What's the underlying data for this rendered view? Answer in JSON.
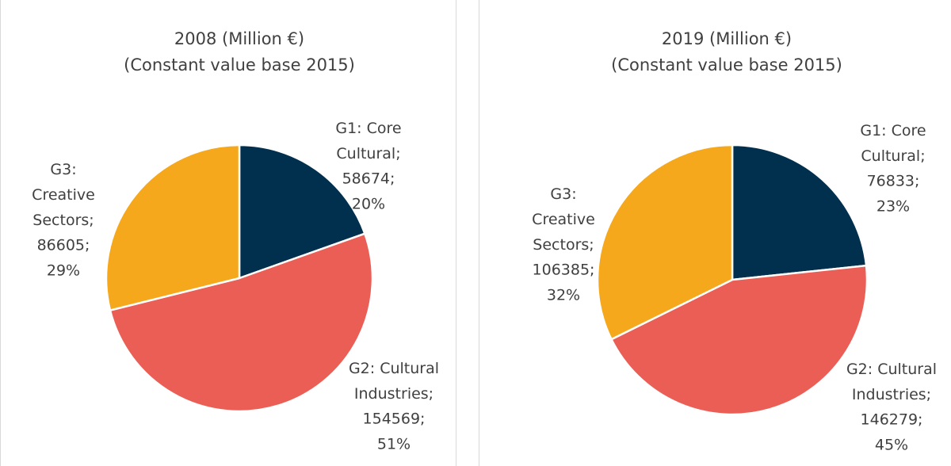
{
  "chart_data": [
    {
      "type": "pie",
      "title": "2008 (Million €)",
      "subtitle": "(Constant value base 2015)",
      "categories": [
        "G1: Core Cultural",
        "G2: Cultural Industries",
        "G3: Creative Sectors"
      ],
      "values": [
        58674,
        154569,
        86605
      ],
      "percent_labels": [
        "20%",
        "51%",
        "29%"
      ],
      "label_separator": ";",
      "colors": [
        "#00304e",
        "#eb5e55",
        "#f5a81b"
      ]
    },
    {
      "type": "pie",
      "title": "2019 (Million €)",
      "subtitle": "(Constant value base 2015)",
      "categories": [
        "G1: Core Cultural",
        "G2: Cultural Industries",
        "G3: Creative Sectors"
      ],
      "values": [
        76833,
        146279,
        106385
      ],
      "percent_labels": [
        "23%",
        "45%",
        "32%"
      ],
      "label_separator": ";",
      "colors": [
        "#00304e",
        "#eb5e55",
        "#f5a81b"
      ]
    }
  ]
}
